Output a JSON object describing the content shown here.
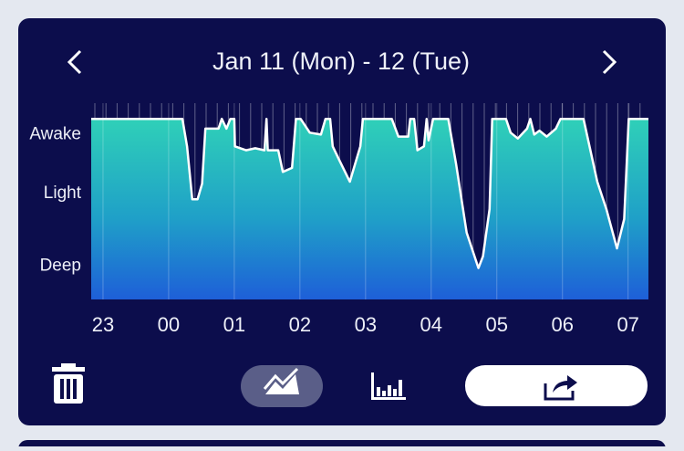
{
  "header": {
    "title": "Jan 11 (Mon) - 12 (Tue)"
  },
  "chart_data": {
    "type": "area",
    "x": [
      22.82,
      24.21,
      24.28,
      24.36,
      24.44,
      24.51,
      24.56,
      24.76,
      24.81,
      24.88,
      24.94,
      25.0,
      25.01,
      25.18,
      25.32,
      25.46,
      25.49,
      25.51,
      25.67,
      25.74,
      25.88,
      25.94,
      26.01,
      26.15,
      26.32,
      26.39,
      26.46,
      26.5,
      26.6,
      26.76,
      26.92,
      26.96,
      27.4,
      27.5,
      27.65,
      27.68,
      27.74,
      27.79,
      27.89,
      27.93,
      27.96,
      28.03,
      28.26,
      28.38,
      28.54,
      28.72,
      28.79,
      28.89,
      28.93,
      29.14,
      29.21,
      29.32,
      29.46,
      29.51,
      29.57,
      29.65,
      29.76,
      29.9,
      29.97,
      30.32,
      30.53,
      30.67,
      30.83,
      30.94,
      31.01,
      31.31
    ],
    "values": [
      92,
      92,
      78,
      51,
      51,
      59,
      87,
      87,
      92,
      87,
      92,
      92,
      78,
      76,
      77,
      76,
      92,
      76,
      76,
      65,
      67,
      92,
      92,
      85,
      84,
      92,
      92,
      78,
      71,
      60,
      78,
      92,
      92,
      83,
      83,
      92,
      92,
      76,
      78,
      92,
      81,
      92,
      92,
      69,
      34,
      16,
      22,
      46,
      92,
      92,
      85,
      82,
      87,
      92,
      84,
      86,
      83,
      87,
      92,
      92,
      60,
      46,
      26,
      41,
      92,
      92
    ],
    "xlim": [
      22.82,
      31.31
    ],
    "ylim": [
      0,
      100
    ],
    "xticks": [
      23,
      {
        "value": 24,
        "label": "00"
      },
      {
        "value": 25,
        "label": "01"
      },
      {
        "value": 26,
        "label": "02"
      },
      {
        "value": 27,
        "label": "03"
      },
      {
        "value": 28,
        "label": "04"
      },
      {
        "value": 29,
        "label": "05"
      },
      {
        "value": 30,
        "label": "06"
      },
      {
        "value": 31,
        "label": "07"
      }
    ],
    "yticks": [
      {
        "value": 84,
        "label": "Awake"
      },
      {
        "value": 54,
        "label": "Light"
      },
      {
        "value": 17,
        "label": "Deep"
      }
    ],
    "grid": true
  }
}
